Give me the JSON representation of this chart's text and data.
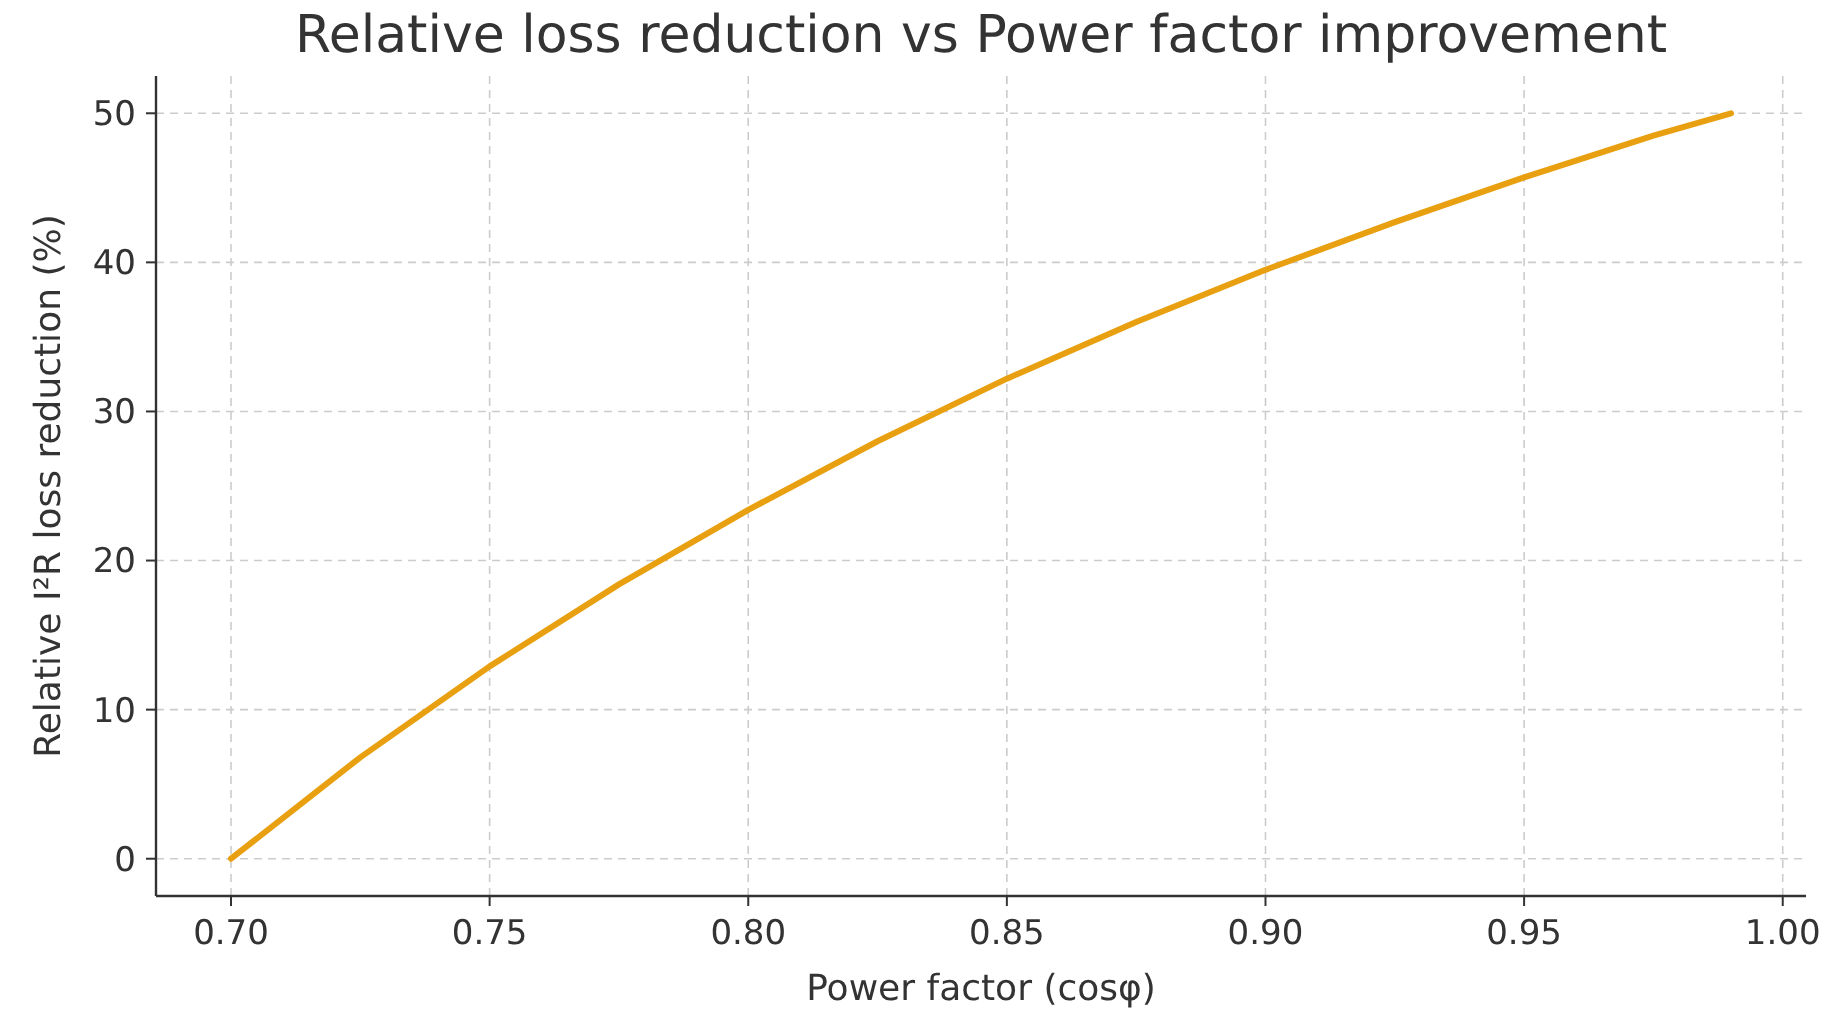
{
  "chart_data": {
    "type": "line",
    "title": "Relative loss reduction vs Power factor improvement",
    "xlabel": "Power factor (cosφ)",
    "ylabel": "Relative I²R loss reduction (%)",
    "x": [
      0.7,
      0.725,
      0.75,
      0.775,
      0.8,
      0.825,
      0.85,
      0.875,
      0.9,
      0.925,
      0.95,
      0.975,
      0.99
    ],
    "series": [
      {
        "color": "#e8a010",
        "values": [
          0,
          6.8,
          12.9,
          18.4,
          23.4,
          28.0,
          32.2,
          36.0,
          39.5,
          42.7,
          45.7,
          48.5,
          50.0
        ]
      }
    ],
    "xlim": [
      0.6855,
      1.0045
    ],
    "ylim": [
      -2.5,
      52.5
    ],
    "xticks": [
      {
        "value": 0.7,
        "label": "0.70"
      },
      {
        "value": 0.75,
        "label": "0.75"
      },
      {
        "value": 0.8,
        "label": "0.80"
      },
      {
        "value": 0.85,
        "label": "0.85"
      },
      {
        "value": 0.9,
        "label": "0.90"
      },
      {
        "value": 0.95,
        "label": "0.95"
      },
      {
        "value": 1.0,
        "label": "1.00"
      }
    ],
    "yticks": [
      0,
      10,
      20,
      30,
      40,
      50
    ],
    "grid": true,
    "line_style": "solid",
    "marker": "none"
  }
}
